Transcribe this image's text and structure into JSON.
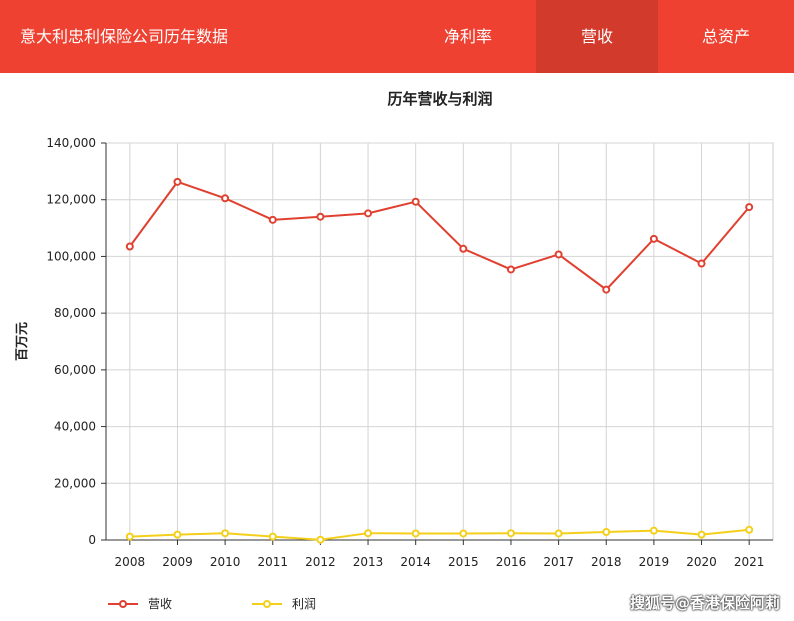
{
  "header": {
    "app_title": "意大利忠利保险公司历年数据",
    "tabs": [
      "净利率",
      "营收",
      "总资产"
    ],
    "active_tab": "营收",
    "brand_color": "#ef4131",
    "active_tab_color": "#d23a2b"
  },
  "chart_data": {
    "type": "line",
    "title": "历年营收与利润",
    "xlabel": "",
    "ylabel": "百万元",
    "categories": [
      "2008",
      "2009",
      "2010",
      "2011",
      "2012",
      "2013",
      "2014",
      "2015",
      "2016",
      "2017",
      "2018",
      "2019",
      "2020",
      "2021"
    ],
    "ylim": [
      0,
      140000
    ],
    "yticks": [
      0,
      20000,
      40000,
      60000,
      80000,
      100000,
      120000,
      140000
    ],
    "ytick_labels": [
      "0",
      "20,000",
      "40,000",
      "60,000",
      "80,000",
      "100,000",
      "120,000",
      "140,000"
    ],
    "grid": true,
    "legend": "bottom-left",
    "series": [
      {
        "name": "营收",
        "color": "#e0402f",
        "values": [
          103500,
          126300,
          120500,
          112900,
          114000,
          115200,
          119300,
          102700,
          95400,
          100700,
          88300,
          106200,
          97500,
          117400
        ]
      },
      {
        "name": "利润",
        "color": "#f4cf1a",
        "values": [
          1200,
          1900,
          2400,
          1200,
          100,
          2400,
          2300,
          2300,
          2400,
          2300,
          2800,
          3300,
          1900,
          3600
        ]
      }
    ]
  },
  "watermark": "搜狐号@香港保险阿莉"
}
